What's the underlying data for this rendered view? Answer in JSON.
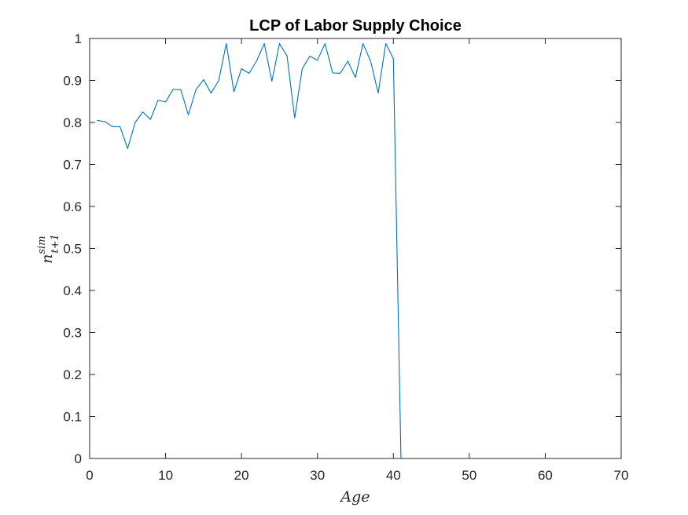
{
  "chart_data": {
    "type": "line",
    "title": "LCP of Labor Supply Choice",
    "xlabel": "Age",
    "ylabel": {
      "base": "n",
      "superscript": "sim",
      "subscript": "t+1"
    },
    "xlim": [
      0,
      70
    ],
    "ylim": [
      0,
      1
    ],
    "xticks": [
      0,
      10,
      20,
      30,
      40,
      50,
      60,
      70
    ],
    "yticks": [
      0,
      0.1,
      0.2,
      0.3,
      0.4,
      0.5,
      0.6,
      0.7,
      0.8,
      0.9,
      1
    ],
    "xtick_labels": [
      "0",
      "10",
      "20",
      "30",
      "40",
      "50",
      "60",
      "70"
    ],
    "ytick_labels": [
      "0",
      "0.1",
      "0.2",
      "0.3",
      "0.4",
      "0.5",
      "0.6",
      "0.7",
      "0.8",
      "0.9",
      "1"
    ],
    "grid": false,
    "box": true,
    "colors": {
      "line": "#0072bd",
      "axes": "#262626",
      "background": "#ffffff"
    },
    "series": [
      {
        "x": [
          1,
          2,
          3,
          4,
          5,
          6,
          7,
          8,
          9,
          10,
          11,
          12,
          13,
          14,
          15,
          16,
          17,
          18,
          19,
          20,
          21,
          22,
          23,
          24,
          25,
          26,
          27,
          28,
          29,
          30,
          31,
          32,
          33,
          34,
          35,
          36,
          37,
          38,
          39,
          40,
          41,
          42,
          43,
          44,
          45,
          46,
          47,
          48,
          49,
          50,
          51,
          52,
          53,
          54,
          55,
          56,
          57,
          58,
          59,
          60,
          61
        ],
        "y": [
          0.805,
          0.802,
          0.79,
          0.79,
          0.738,
          0.8,
          0.825,
          0.807,
          0.853,
          0.849,
          0.879,
          0.878,
          0.818,
          0.878,
          0.902,
          0.87,
          0.9,
          0.988,
          0.873,
          0.928,
          0.917,
          0.947,
          0.988,
          0.898,
          0.988,
          0.958,
          0.811,
          0.928,
          0.958,
          0.948,
          0.988,
          0.918,
          0.917,
          0.946,
          0.907,
          0.988,
          0.946,
          0.87,
          0.988,
          0.952,
          0,
          0,
          0,
          0,
          0,
          0,
          0,
          0,
          0,
          0,
          0,
          0,
          0,
          0,
          0,
          0,
          0,
          0,
          0,
          0,
          0
        ]
      }
    ]
  }
}
